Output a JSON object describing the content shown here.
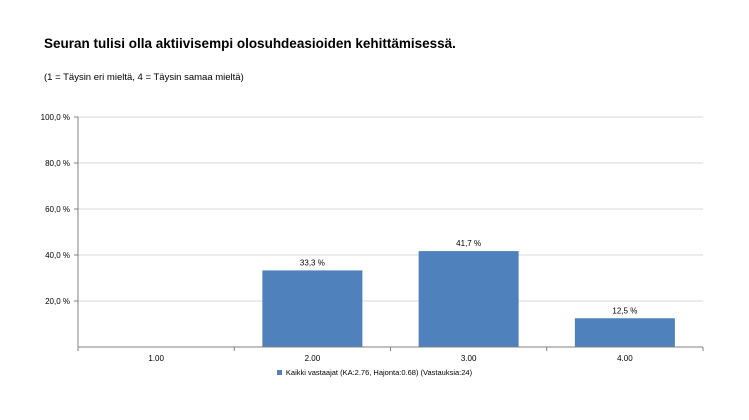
{
  "chart_data": {
    "type": "bar",
    "title": "Seuran tulisi olla aktiivisempi olosuhdeasioiden kehittämisessä.",
    "subtitle": "(1 = Täysin eri mieltä, 4 = Täysin samaa mieltä)",
    "categories": [
      "1.00",
      "2.00",
      "3.00",
      "4.00"
    ],
    "series": [
      {
        "name": "Kaikki vastaajat (KA:2.76, Hajonta:0.68) (Vastauksia:24)",
        "values": [
          0,
          33.3,
          41.7,
          12.5
        ],
        "labels": [
          "",
          "33,3 %",
          "41,7 %",
          "12,5 %"
        ]
      }
    ],
    "y_ticks": [
      {
        "value": 20,
        "label": "20,0 %"
      },
      {
        "value": 40,
        "label": "40,0 %"
      },
      {
        "value": 60,
        "label": "60,0 %"
      },
      {
        "value": 80,
        "label": "80,0 %"
      },
      {
        "value": 100,
        "label": "100,0 %"
      }
    ],
    "ylim": [
      0,
      100
    ],
    "grid": true,
    "legend_position": "bottom",
    "bar_color": "#4f81bd",
    "grid_color": "#d9d9d9",
    "axis_color": "#808080"
  }
}
